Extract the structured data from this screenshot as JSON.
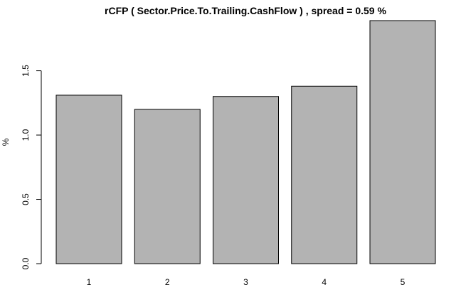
{
  "chart_data": {
    "type": "bar",
    "title": "rCFP ( Sector.Price.To.Trailing.CashFlow ) , spread = 0.59 %",
    "xlabel": "",
    "ylabel": "%",
    "categories": [
      "1",
      "2",
      "3",
      "4",
      "5"
    ],
    "values": [
      1.31,
      1.2,
      1.3,
      1.38,
      1.89
    ],
    "ylim": [
      0,
      1.89
    ],
    "y_ticks": [
      0.0,
      0.5,
      1.0,
      1.5
    ],
    "y_tick_labels": [
      "0.0",
      "0.5",
      "1.0",
      "1.5"
    ],
    "grid": false,
    "legend": "none",
    "colors": {
      "bar_fill": "#b3b3b3",
      "bar_stroke": "#000000",
      "axis": "#000000",
      "background": "#ffffff"
    }
  }
}
